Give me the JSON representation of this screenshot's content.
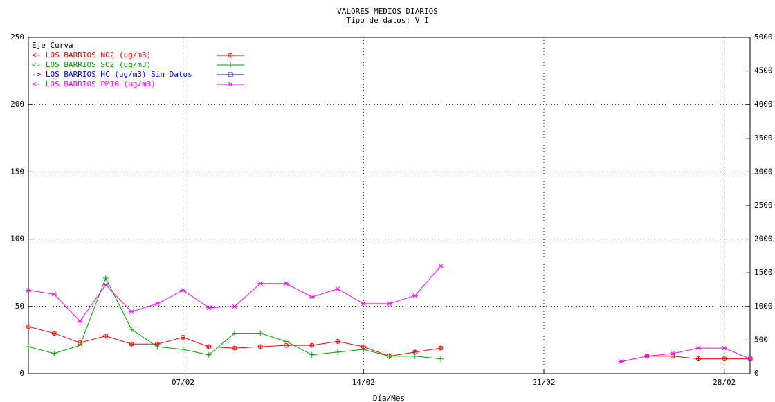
{
  "chart_data": {
    "type": "line",
    "title": "VALORES MEDIOS DIARIOS",
    "subtitle": "Tipo de datos:  V I",
    "xlabel": "Día/Mes",
    "legend_title": "Eje Curva",
    "x": [
      1,
      2,
      3,
      4,
      5,
      6,
      7,
      8,
      9,
      10,
      11,
      12,
      13,
      14,
      15,
      16,
      17,
      18,
      19,
      20,
      21,
      22,
      23,
      24,
      25,
      26,
      27,
      28,
      29
    ],
    "xlim": [
      1,
      29
    ],
    "xticks": [
      {
        "value": 7,
        "label": "07/02"
      },
      {
        "value": 14,
        "label": "14/02"
      },
      {
        "value": 21,
        "label": "21/02"
      },
      {
        "value": 28,
        "label": "28/02"
      }
    ],
    "ylim": [
      0,
      250
    ],
    "yticks": [
      0,
      50,
      100,
      150,
      200,
      250
    ],
    "y2lim": [
      0,
      5000
    ],
    "y2ticks": [
      0,
      500,
      1000,
      1500,
      2000,
      2500,
      3000,
      3500,
      4000,
      4500,
      5000
    ],
    "grid": true,
    "legend": "upper left",
    "series": [
      {
        "name": "<-  LOS BARRIOS NO2  (ug/m3)",
        "color": "#ff0000",
        "marker": "circle-plus",
        "values": [
          35,
          30,
          23,
          28,
          22,
          22,
          27,
          20,
          19,
          20,
          21,
          21,
          24,
          20,
          13,
          16,
          19,
          null,
          null,
          null,
          null,
          null,
          null,
          null,
          13,
          13,
          11,
          11,
          11
        ]
      },
      {
        "name": "<-  LOS BARRIOS SO2  (ug/m3)",
        "color": "#00a000",
        "marker": "plus",
        "values": [
          20,
          15,
          21,
          71,
          33,
          20,
          18,
          14,
          30,
          30,
          24,
          14,
          16,
          18,
          13,
          13,
          11,
          null,
          null,
          null,
          null,
          null,
          null,
          null,
          null,
          null,
          null,
          null,
          null
        ]
      },
      {
        "name": "->  LOS BARRIOS HC  (ug/m3) Sin Datos",
        "color": "#0000ff",
        "marker": "box",
        "axis": "y2",
        "values": [
          null,
          null,
          null,
          null,
          null,
          null,
          null,
          null,
          null,
          null,
          null,
          null,
          null,
          null,
          null,
          null,
          null,
          null,
          null,
          null,
          null,
          null,
          null,
          null,
          null,
          null,
          null,
          null,
          null
        ]
      },
      {
        "name": "<-  LOS BARRIOS PM10  (ug/m3)",
        "color": "#ff00ff",
        "marker": "star",
        "values": [
          62,
          59,
          39,
          66,
          46,
          52,
          62,
          49,
          50,
          67,
          67,
          57,
          63,
          52,
          52,
          58,
          80,
          null,
          null,
          null,
          null,
          null,
          null,
          9,
          13,
          15,
          19,
          19,
          11
        ]
      }
    ]
  }
}
